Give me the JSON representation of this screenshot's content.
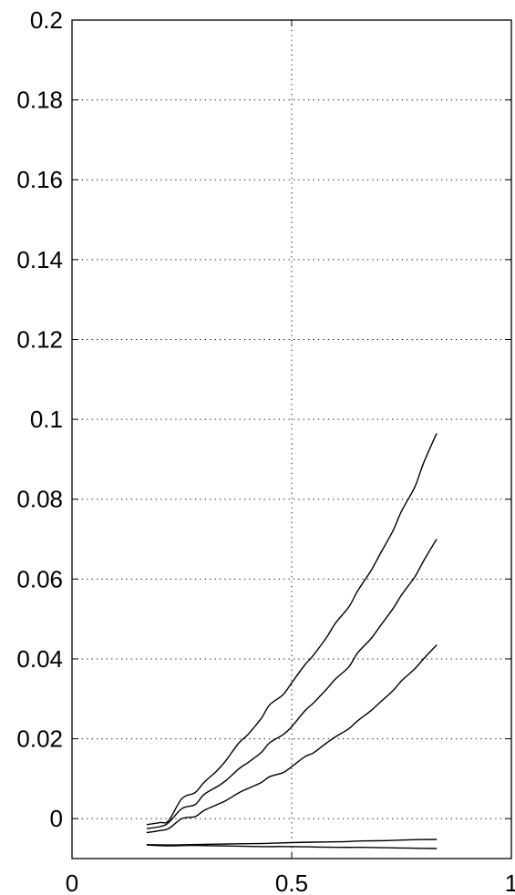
{
  "chart_data": {
    "type": "line",
    "title": "",
    "xlabel": "",
    "ylabel": "",
    "xlim": [
      0,
      1
    ],
    "ylim": [
      -0.01,
      0.2
    ],
    "grid": true,
    "xticks": [
      0,
      0.5,
      1
    ],
    "xtick_labels": [
      "0",
      "0.5",
      "1"
    ],
    "yticks": [
      0,
      0.02,
      0.04,
      0.06,
      0.08,
      0.1,
      0.12,
      0.14,
      0.16,
      0.18,
      0.2
    ],
    "ytick_labels": [
      "0",
      "0.02",
      "0.04",
      "0.06",
      "0.08",
      "0.1",
      "0.12",
      "0.14",
      "0.16",
      "0.18",
      "0.2"
    ],
    "series": [
      {
        "x": [
          0.17,
          0.2,
          0.22,
          0.25,
          0.28,
          0.3,
          0.33,
          0.35,
          0.38,
          0.4,
          0.43,
          0.45,
          0.48,
          0.5,
          0.53,
          0.55,
          0.58,
          0.6,
          0.63,
          0.65,
          0.68,
          0.7,
          0.73,
          0.75,
          0.78,
          0.8,
          0.83
        ],
        "values": [
          -0.0015,
          -0.001,
          -0.0005,
          0.005,
          0.0065,
          0.009,
          0.012,
          0.0145,
          0.019,
          0.021,
          0.025,
          0.0285,
          0.031,
          0.034,
          0.0385,
          0.041,
          0.0455,
          0.049,
          0.053,
          0.057,
          0.062,
          0.066,
          0.072,
          0.077,
          0.083,
          0.089,
          0.0965
        ]
      },
      {
        "x": [
          0.17,
          0.2,
          0.22,
          0.25,
          0.28,
          0.3,
          0.33,
          0.35,
          0.38,
          0.4,
          0.43,
          0.45,
          0.48,
          0.5,
          0.53,
          0.55,
          0.58,
          0.6,
          0.63,
          0.65,
          0.68,
          0.7,
          0.73,
          0.75,
          0.78,
          0.8,
          0.83
        ],
        "values": [
          -0.0025,
          -0.002,
          -0.001,
          0.0025,
          0.0035,
          0.006,
          0.008,
          0.0095,
          0.0125,
          0.014,
          0.0165,
          0.019,
          0.021,
          0.023,
          0.027,
          0.029,
          0.0325,
          0.035,
          0.038,
          0.0415,
          0.045,
          0.048,
          0.0525,
          0.056,
          0.0605,
          0.0645,
          0.07
        ]
      },
      {
        "x": [
          0.17,
          0.2,
          0.22,
          0.25,
          0.28,
          0.3,
          0.33,
          0.35,
          0.38,
          0.4,
          0.43,
          0.45,
          0.48,
          0.5,
          0.53,
          0.55,
          0.58,
          0.6,
          0.63,
          0.65,
          0.68,
          0.7,
          0.73,
          0.75,
          0.78,
          0.8,
          0.83
        ],
        "values": [
          -0.0035,
          -0.003,
          -0.0025,
          0.0,
          0.0005,
          0.002,
          0.0035,
          0.0045,
          0.0065,
          0.0075,
          0.009,
          0.0105,
          0.0115,
          0.013,
          0.0155,
          0.0165,
          0.019,
          0.0205,
          0.0225,
          0.0245,
          0.027,
          0.029,
          0.032,
          0.0345,
          0.0375,
          0.04,
          0.0435
        ]
      },
      {
        "x": [
          0.17,
          0.22,
          0.27,
          0.33,
          0.38,
          0.44,
          0.5,
          0.55,
          0.61,
          0.66,
          0.72,
          0.77,
          0.83
        ],
        "values": [
          -0.0065,
          -0.0066,
          -0.0065,
          -0.0064,
          -0.0063,
          -0.0062,
          -0.006,
          -0.0059,
          -0.0058,
          -0.0056,
          -0.0055,
          -0.0053,
          -0.0052
        ]
      },
      {
        "x": [
          0.17,
          0.22,
          0.27,
          0.33,
          0.38,
          0.44,
          0.5,
          0.55,
          0.61,
          0.66,
          0.72,
          0.77,
          0.83
        ],
        "values": [
          -0.0066,
          -0.0068,
          -0.0067,
          -0.0068,
          -0.0069,
          -0.007,
          -0.007,
          -0.0071,
          -0.0072,
          -0.0072,
          -0.0073,
          -0.0074,
          -0.0075
        ]
      }
    ]
  }
}
